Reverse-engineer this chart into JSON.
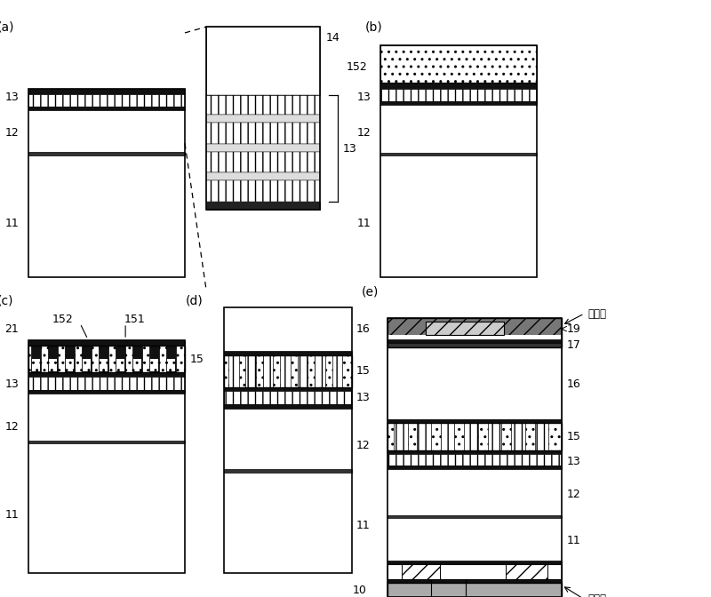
{
  "bg": "#ffffff",
  "panels": {
    "a": [
      0.04,
      0.535,
      0.22,
      0.41
    ],
    "a_zoom": [
      0.29,
      0.515,
      0.16,
      0.44
    ],
    "b": [
      0.535,
      0.535,
      0.22,
      0.41
    ],
    "c": [
      0.04,
      0.04,
      0.22,
      0.445
    ],
    "d": [
      0.315,
      0.04,
      0.18,
      0.445
    ],
    "e": [
      0.545,
      0.0,
      0.245,
      0.51
    ]
  },
  "hatch_vline": "||",
  "hatch_dot": "..",
  "hatch_diag": "//",
  "hatch_wave": "~"
}
